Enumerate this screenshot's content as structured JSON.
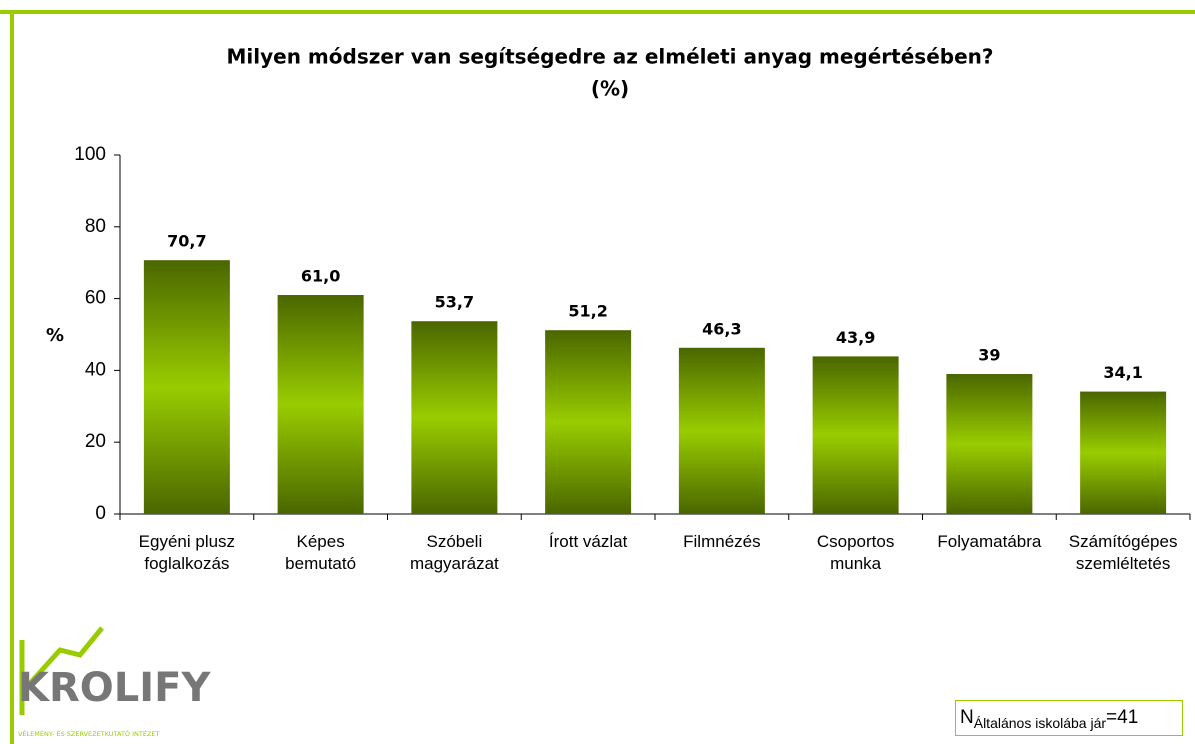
{
  "chart_data": {
    "type": "bar",
    "title": "Milyen módszer van segítségedre az elméleti anyag megértésében?",
    "subtitle": "(%)",
    "y_label": "%",
    "categories": [
      "Egyéni plusz\nfoglalkozás",
      "Képes\nbemutató",
      "Szóbeli\nmagyarázat",
      "Írott vázlat",
      "Filmnézés",
      "Csoportos\nmunka",
      "Folyamatábra",
      "Számítógépes\nszemléltetés"
    ],
    "values": [
      70.7,
      61.0,
      53.7,
      51.2,
      46.3,
      43.9,
      39,
      34.1
    ],
    "value_labels": [
      "70,7",
      "61,0",
      "53,7",
      "51,2",
      "46,3",
      "43,9",
      "39",
      "34,1"
    ],
    "color": "#99cc00",
    "ylim": [
      0,
      100
    ],
    "yticks": [
      0,
      20,
      40,
      60,
      80,
      100
    ],
    "grid": false
  },
  "logo": {
    "name": "KROLIFY",
    "tagline": "VÉLEMÉNY- ÉS SZERVEZETKUTATÓ INTÉZET"
  },
  "note": {
    "symbol": "N",
    "subscript": "Általános iskolába jár",
    "rest": "=41"
  }
}
